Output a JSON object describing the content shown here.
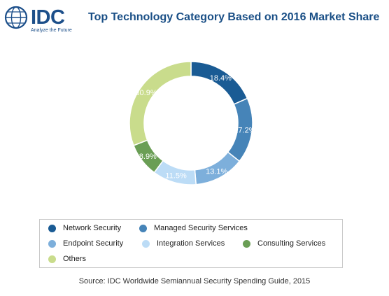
{
  "logo": {
    "brand": "IDC",
    "tagline": "Analyze the Future"
  },
  "header": {
    "title": "Top Technology Category Based on 2016 Market Share"
  },
  "chart_data": {
    "type": "pie",
    "donut": true,
    "title": "Top Technology Category Based on 2016 Market Share",
    "start_angle_deg": 90,
    "direction": "clockwise",
    "data_labels_shown": true,
    "legend_position": "bottom",
    "series": [
      {
        "name": "Network Security",
        "value": 18.4,
        "label": "18.4%",
        "color": "#1a5b94"
      },
      {
        "name": "Managed Security Services",
        "value": 17.2,
        "label": "17.2%",
        "color": "#4684b8"
      },
      {
        "name": "Endpoint Security",
        "value": 13.1,
        "label": "13.1%",
        "color": "#7dafdb"
      },
      {
        "name": "Integration Services",
        "value": 11.5,
        "label": "11.5%",
        "color": "#bcdcf6"
      },
      {
        "name": "Consulting Services",
        "value": 8.9,
        "label": "8.9%",
        "color": "#6a9e55"
      },
      {
        "name": "Others",
        "value": 30.9,
        "label": "30.9%",
        "color": "#c9dc8c"
      }
    ]
  },
  "legend": {
    "items": [
      {
        "label": "Network Security",
        "color": "#1a5b94"
      },
      {
        "label": "Managed Security Services",
        "color": "#4684b8"
      },
      {
        "label": "Endpoint Security",
        "color": "#7dafdb"
      },
      {
        "label": "Integration Services",
        "color": "#bcdcf6"
      },
      {
        "label": "Consulting Services",
        "color": "#6a9e55"
      },
      {
        "label": "Others",
        "color": "#c9dc8c"
      }
    ]
  },
  "footer": {
    "source": "Source: IDC Worldwide Semiannual Security Spending Guide, 2015"
  }
}
